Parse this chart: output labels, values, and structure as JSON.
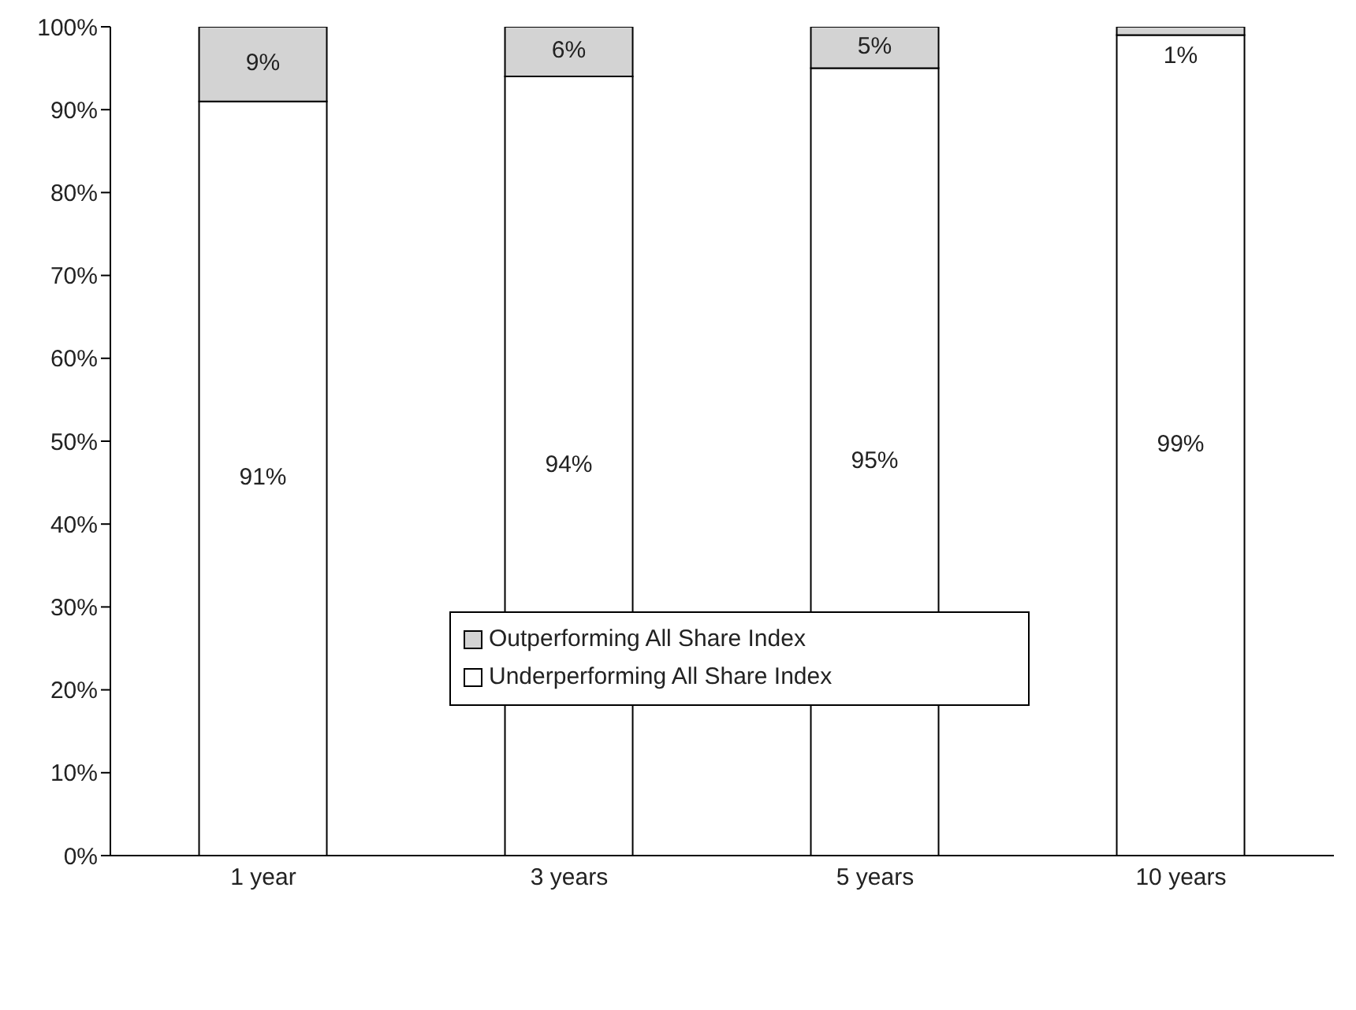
{
  "chart_data": {
    "type": "bar",
    "stacked": true,
    "categories": [
      "1 year",
      "3 years",
      "5 years",
      "10 years"
    ],
    "series": [
      {
        "name": "Underperforming All Share Index",
        "color": "#ffffff",
        "values": [
          91,
          94,
          95,
          99
        ],
        "value_labels": [
          "91%",
          "94%",
          "95%",
          "99%"
        ]
      },
      {
        "name": "Outperforming All Share Index",
        "color": "#d3d3d3",
        "values": [
          9,
          6,
          5,
          1
        ],
        "value_labels": [
          "9%",
          "6%",
          "5%",
          "1%"
        ]
      }
    ],
    "ylim": [
      0,
      100
    ],
    "yticks": [
      {
        "value": 0,
        "label": "0%"
      },
      {
        "value": 10,
        "label": "10%"
      },
      {
        "value": 20,
        "label": "20%"
      },
      {
        "value": 30,
        "label": "30%"
      },
      {
        "value": 40,
        "label": "40%"
      },
      {
        "value": 50,
        "label": "50%"
      },
      {
        "value": 60,
        "label": "60%"
      },
      {
        "value": 70,
        "label": "70%"
      },
      {
        "value": 80,
        "label": "80%"
      },
      {
        "value": 90,
        "label": "90%"
      },
      {
        "value": 100,
        "label": "100%"
      }
    ],
    "grid": false,
    "legend": "center"
  }
}
